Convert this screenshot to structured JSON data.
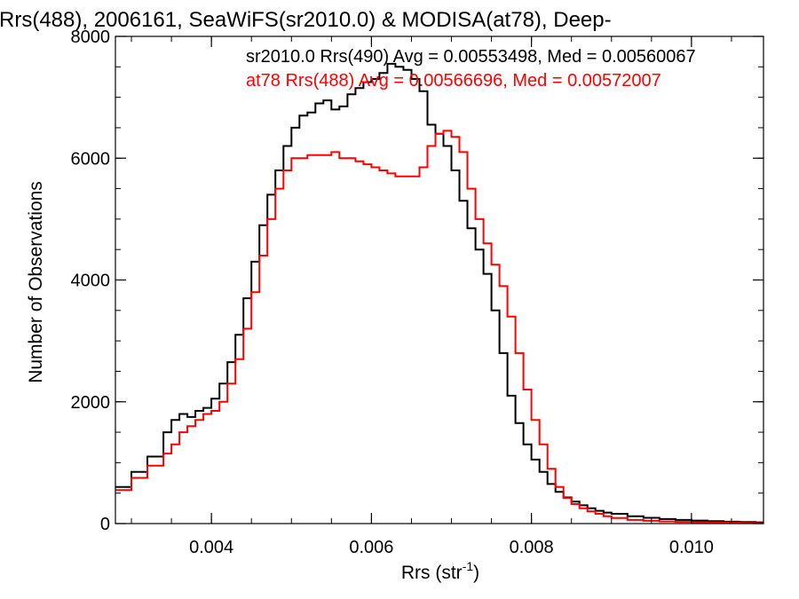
{
  "chart_data": {
    "type": "line",
    "title": "Rrs(488), 2006161, SeaWiFS(sr2010.0) & MODISA(at78), Deep-",
    "xlabel_main": "Rrs (str",
    "xlabel_sup": "-1",
    "xlabel_end": ")",
    "ylabel": "Number of Observations",
    "xlim": [
      0.0028,
      0.0109
    ],
    "ylim": [
      0,
      8000
    ],
    "x_ticks": [
      {
        "value": 0.004,
        "label": "0.004"
      },
      {
        "value": 0.006,
        "label": "0.006"
      },
      {
        "value": 0.008,
        "label": "0.008"
      },
      {
        "value": 0.01,
        "label": "0.010"
      }
    ],
    "y_ticks": [
      {
        "value": 0,
        "label": "0"
      },
      {
        "value": 2000,
        "label": "2000"
      },
      {
        "value": 4000,
        "label": "4000"
      },
      {
        "value": 6000,
        "label": "6000"
      },
      {
        "value": 8000,
        "label": "8000"
      }
    ],
    "legend_placement": "top-right",
    "series": [
      {
        "name": "sr2010.0 Rrs(490) Avg = 0.00553498, Med = 0.00560067",
        "color": "#000000",
        "x": [
          0.0028,
          0.003,
          0.0032,
          0.0034,
          0.0035,
          0.0036,
          0.0037,
          0.0038,
          0.0039,
          0.004,
          0.0041,
          0.0042,
          0.0043,
          0.0044,
          0.0045,
          0.0046,
          0.0047,
          0.0048,
          0.0049,
          0.005,
          0.0051,
          0.0052,
          0.0053,
          0.0054,
          0.0055,
          0.0056,
          0.0057,
          0.0058,
          0.0059,
          0.006,
          0.0061,
          0.0062,
          0.0063,
          0.0064,
          0.0065,
          0.0066,
          0.0067,
          0.0068,
          0.0069,
          0.007,
          0.0071,
          0.0072,
          0.0073,
          0.0074,
          0.0075,
          0.0076,
          0.0077,
          0.0078,
          0.0079,
          0.008,
          0.0081,
          0.0082,
          0.0083,
          0.0084,
          0.0085,
          0.0086,
          0.0087,
          0.0088,
          0.0089,
          0.009,
          0.0092,
          0.0094,
          0.0096,
          0.0098,
          0.01,
          0.0102,
          0.0104,
          0.0106,
          0.0108,
          0.0109
        ],
        "y": [
          600,
          850,
          1100,
          1500,
          1700,
          1800,
          1750,
          1850,
          1900,
          2050,
          2300,
          2650,
          3100,
          3700,
          4300,
          4900,
          5400,
          5800,
          6200,
          6500,
          6700,
          6750,
          6900,
          6950,
          6800,
          6850,
          7050,
          7150,
          7250,
          7300,
          7400,
          7550,
          7500,
          7450,
          7300,
          7100,
          6550,
          6400,
          6200,
          5800,
          5300,
          4850,
          4500,
          4100,
          3500,
          2800,
          2100,
          1650,
          1300,
          1050,
          850,
          650,
          520,
          430,
          360,
          300,
          250,
          210,
          180,
          160,
          120,
          95,
          75,
          60,
          50,
          40,
          30,
          25,
          20,
          15
        ]
      },
      {
        "name": "at78 Rrs(488) Avg = 0.00566696, Med = 0.00572007",
        "color": "#ff0000",
        "x": [
          0.0028,
          0.003,
          0.0032,
          0.0034,
          0.0035,
          0.0036,
          0.0037,
          0.0038,
          0.0039,
          0.004,
          0.0041,
          0.0042,
          0.0043,
          0.0044,
          0.0045,
          0.0046,
          0.0047,
          0.0048,
          0.0049,
          0.005,
          0.0051,
          0.0052,
          0.0053,
          0.0054,
          0.0055,
          0.0056,
          0.0057,
          0.0058,
          0.0059,
          0.006,
          0.0061,
          0.0062,
          0.0063,
          0.0064,
          0.0065,
          0.0066,
          0.0067,
          0.0068,
          0.0069,
          0.007,
          0.0071,
          0.0072,
          0.0073,
          0.0074,
          0.0075,
          0.0076,
          0.0077,
          0.0078,
          0.0079,
          0.008,
          0.0081,
          0.0082,
          0.0083,
          0.0084,
          0.0085,
          0.0086,
          0.0087,
          0.0088,
          0.0089,
          0.009,
          0.0092,
          0.0094,
          0.0096,
          0.0098,
          0.01,
          0.0102,
          0.0104,
          0.0106,
          0.0108,
          0.0109
        ],
        "y": [
          550,
          750,
          950,
          1150,
          1300,
          1500,
          1600,
          1700,
          1800,
          1850,
          2000,
          2300,
          2700,
          3200,
          3800,
          4400,
          5000,
          5500,
          5800,
          6000,
          6000,
          6050,
          6050,
          6050,
          6100,
          6000,
          6000,
          5950,
          5900,
          5850,
          5800,
          5750,
          5700,
          5700,
          5700,
          5850,
          6200,
          6400,
          6450,
          6350,
          6100,
          5500,
          5000,
          4600,
          4250,
          3900,
          3400,
          2800,
          2200,
          1700,
          1300,
          900,
          600,
          420,
          320,
          250,
          200,
          160,
          120,
          90,
          60,
          45,
          35,
          28,
          22,
          18,
          14,
          10,
          8,
          6
        ]
      }
    ]
  }
}
